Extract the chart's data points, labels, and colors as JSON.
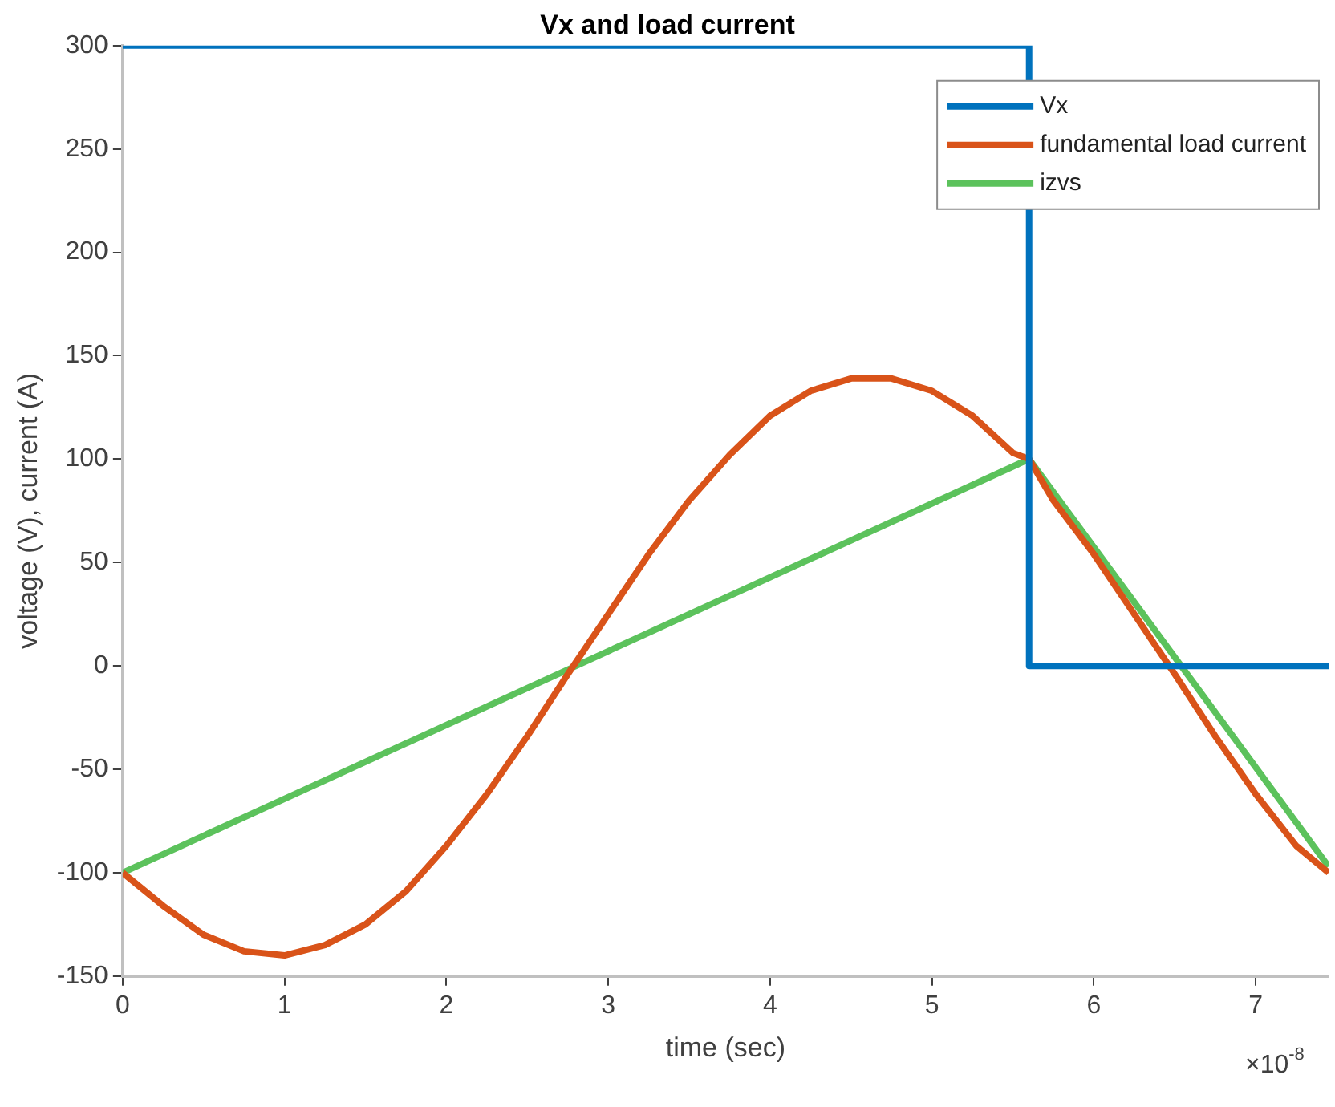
{
  "chart_data": {
    "type": "line",
    "title": "Vx and load current",
    "xlabel": "time (sec)",
    "ylabel": "voltage (V), current (A)",
    "annotations": [
      "×10$^{-8}$"
    ],
    "xlim": [
      0,
      7.45
    ],
    "xticks": [
      0,
      1,
      2,
      3,
      4,
      5,
      6,
      7
    ],
    "ylim": [
      -150,
      300
    ],
    "yticks": [
      -150,
      -100,
      -50,
      0,
      50,
      100,
      150,
      200,
      250,
      300
    ],
    "grid": false,
    "legend": "top right",
    "marker": "none",
    "line_style": "solid",
    "series": [
      {
        "name": "Vx",
        "color": "#0072bd",
        "x": [
          0,
          5.6,
          5.6,
          7.45
        ],
        "values": [
          300,
          300,
          0,
          0
        ]
      },
      {
        "name": "fundamental load current",
        "color": "#d95319",
        "x": [
          0,
          0.25,
          0.5,
          0.75,
          1,
          1.25,
          1.5,
          1.75,
          2,
          2.25,
          2.5,
          2.75,
          3,
          3.25,
          3.5,
          3.75,
          4,
          4.25,
          4.5,
          4.75,
          5,
          5.25,
          5.5,
          5.6,
          5.75,
          6,
          6.25,
          6.5,
          6.75,
          7,
          7.25,
          7.45
        ],
        "values": [
          -100,
          -116,
          -130,
          -138,
          -140,
          -135,
          -125,
          -109,
          -87,
          -62,
          -34,
          -4,
          25,
          54,
          80,
          102,
          121,
          133,
          139,
          139,
          133,
          121,
          103,
          100,
          80,
          54,
          25,
          -4,
          -34,
          -62,
          -87,
          -100
        ]
      },
      {
        "name": "izvs",
        "color": "#5cc25c",
        "x": [
          0,
          5.6,
          7.45
        ],
        "values": [
          -100,
          100,
          -97
        ]
      }
    ]
  }
}
